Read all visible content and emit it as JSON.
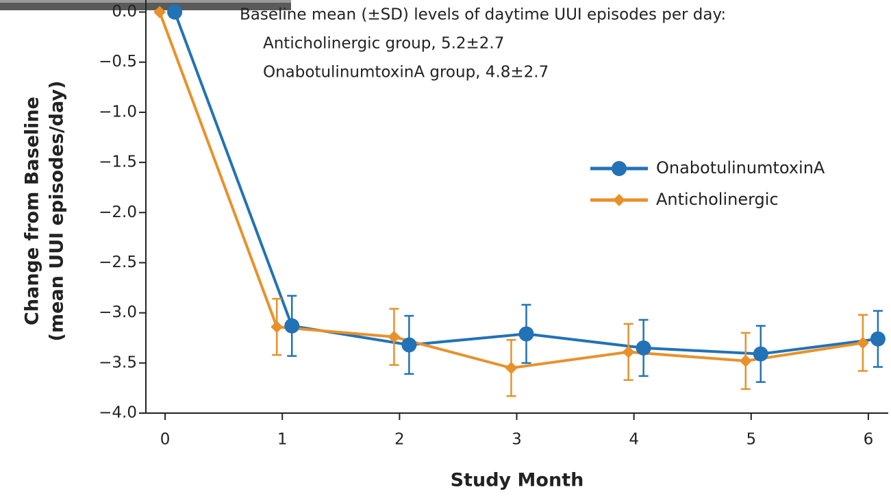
{
  "chart_data": {
    "type": "line",
    "annotation": [
      "Baseline mean (±SD) levels of daytime UUI episodes per day:",
      "Anticholinergic group, 5.2±2.7",
      "OnabotulinumtoxinA group, 4.8±2.7"
    ],
    "x_label": "Study Month",
    "y_label": [
      "Change from Baseline",
      "(mean UUI episodes/day)"
    ],
    "x": [
      0,
      1,
      2,
      3,
      4,
      5,
      6
    ],
    "series": [
      {
        "name": "OnabotulinumtoxinA",
        "color": "#2272b6",
        "marker": "circle",
        "values": [
          0.0,
          -3.13,
          -3.32,
          -3.21,
          -3.35,
          -3.41,
          -3.26
        ],
        "errors": [
          null,
          0.3,
          0.29,
          0.29,
          0.28,
          0.28,
          0.28
        ]
      },
      {
        "name": "Anticholinergic",
        "color": "#e8912a",
        "marker": "diamond",
        "values": [
          0.0,
          -3.14,
          -3.24,
          -3.55,
          -3.39,
          -3.48,
          -3.3
        ],
        "errors": [
          null,
          0.28,
          0.28,
          0.28,
          0.28,
          0.28,
          0.28
        ]
      }
    ],
    "xlim": [
      -0.17,
      6.17
    ],
    "xticks": [
      0,
      1,
      2,
      3,
      4,
      5,
      6
    ],
    "ylim": [
      -4.0,
      0.12
    ],
    "yticks": [
      {
        "value": 0,
        "label": "0.0"
      },
      {
        "value": -0.5,
        "label": "−0.5"
      },
      {
        "value": -1.0,
        "label": "−1.0"
      },
      {
        "value": -1.5,
        "label": "−1.5"
      },
      {
        "value": -2.0,
        "label": "−2.0"
      },
      {
        "value": -2.5,
        "label": "−2.5"
      },
      {
        "value": -3.0,
        "label": "−3.0"
      },
      {
        "value": -3.5,
        "label": "−3.5"
      },
      {
        "value": -4.0,
        "label": "−4.0"
      }
    ]
  }
}
